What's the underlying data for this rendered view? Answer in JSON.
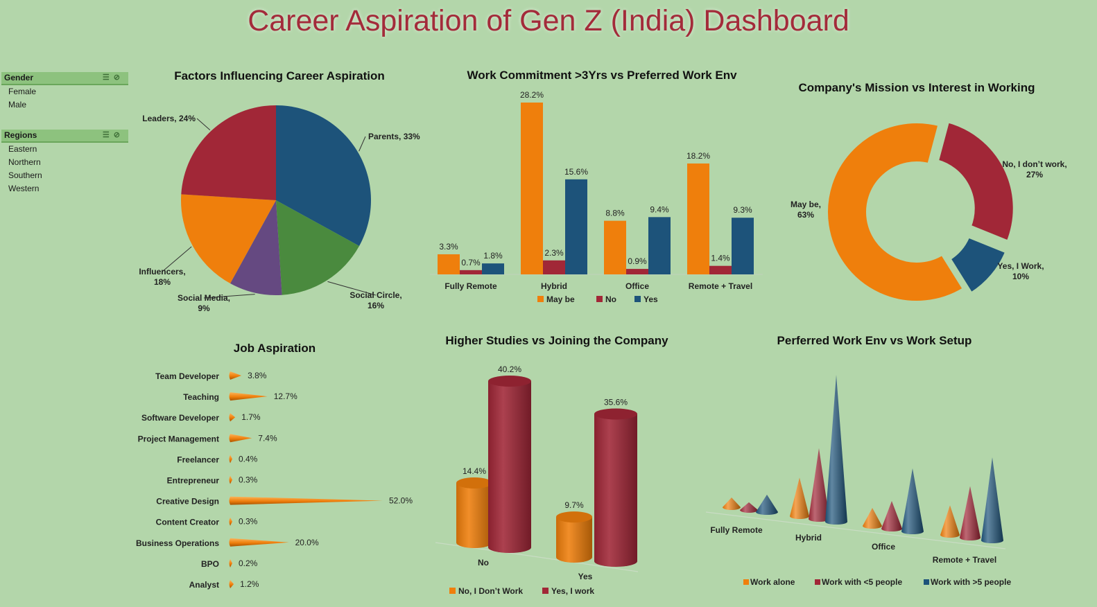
{
  "title": "Career Aspiration of Gen Z (India) Dashboard",
  "slicers": [
    {
      "header": "Gender",
      "items": [
        "Female",
        "Male"
      ]
    },
    {
      "header": "Regions",
      "items": [
        "Eastern",
        "Northern",
        "Southern",
        "Western"
      ]
    }
  ],
  "colors": {
    "orange": "#ef7f0c",
    "red": "#a12737",
    "blue": "#1d537a",
    "green": "#4a8a3e",
    "purple": "#654981"
  },
  "chart_data": [
    {
      "type": "pie",
      "title": "Factors Influencing Career Aspiration",
      "slices": [
        {
          "label": "Parents, 33%",
          "name": "Parents",
          "value": 33,
          "color": "#1d537a"
        },
        {
          "label": "Social Circle, 16%",
          "name": "Social Circle",
          "value": 16,
          "color": "#4a8a3e"
        },
        {
          "label": "Social Media, 9%",
          "name": "Social Media",
          "value": 9,
          "color": "#654981"
        },
        {
          "label": "Influencers, 18%",
          "name": "Influencers",
          "value": 18,
          "color": "#ef7f0c"
        },
        {
          "label": "Leaders, 24%",
          "name": "Leaders",
          "value": 24,
          "color": "#a12737"
        }
      ]
    },
    {
      "type": "bar",
      "title": "Work Commitment >3Yrs vs Preferred Work Env",
      "categories": [
        "Fully Remote",
        "Hybrid",
        "Office",
        "Remote + Travel"
      ],
      "series": [
        {
          "name": "May be",
          "values": [
            3.3,
            28.2,
            8.8,
            18.2
          ],
          "color": "#ef7f0c"
        },
        {
          "name": "No",
          "values": [
            0.7,
            2.3,
            0.9,
            1.4
          ],
          "color": "#a12737"
        },
        {
          "name": "Yes",
          "values": [
            1.8,
            15.6,
            9.4,
            9.3
          ],
          "color": "#1d537a"
        }
      ],
      "value_format": "%",
      "legend": "bottom"
    },
    {
      "type": "pie",
      "subtype": "donut",
      "title": "Company's Mission vs Interest in Working",
      "slices": [
        {
          "label": "No, I don't work, 27%",
          "name": "No, I don't work",
          "value": 27,
          "color": "#a12737"
        },
        {
          "label": "Yes, I Work, 10%",
          "name": "Yes, I Work",
          "value": 10,
          "color": "#1d537a"
        },
        {
          "label": "May be, 63%",
          "name": "May be",
          "value": 63,
          "color": "#ef7f0c"
        }
      ]
    },
    {
      "type": "bar",
      "subtype": "horizontal-cone",
      "title": "Job Aspiration",
      "categories": [
        "Team Developer",
        "Teaching",
        "Software Developer",
        "Project Management",
        "Freelancer",
        "Entrepreneur",
        "Creative Design",
        "Content Creator",
        "Business Operations",
        "BPO",
        "Analyst"
      ],
      "values": [
        3.8,
        12.7,
        1.7,
        7.4,
        0.4,
        0.3,
        52.0,
        0.3,
        20.0,
        0.2,
        1.2
      ],
      "labels": [
        "3.8%",
        "12.7%",
        "1.7%",
        "7.4%",
        "0.4%",
        "0.3%",
        "52.0%",
        "0.3%",
        "20.0%",
        "0.2%",
        "1.2%"
      ],
      "color": "#ef7f0c"
    },
    {
      "type": "bar",
      "subtype": "3d-cylinder",
      "title": "Higher Studies vs Joining the Company",
      "categories": [
        "No",
        "Yes"
      ],
      "series": [
        {
          "name": "No, I Don't Work",
          "values": [
            14.4,
            9.7
          ],
          "labels": [
            "14.4%",
            "9.7%"
          ],
          "color": "#ef7f0c"
        },
        {
          "name": "Yes, I work",
          "values": [
            40.2,
            35.6
          ],
          "labels": [
            "40.2%",
            "35.6%"
          ],
          "color": "#a12737"
        }
      ],
      "legend": "bottom"
    },
    {
      "type": "bar",
      "subtype": "3d-cone",
      "title": "Perferred Work Env vs Work Setup",
      "categories": [
        "Fully Remote",
        "Hybrid",
        "Office",
        "Remote + Travel"
      ],
      "series": [
        {
          "name": "Work alone",
          "values": [
            1.5,
            6.0,
            2.8,
            4.6
          ],
          "color": "#ef7f0c"
        },
        {
          "name": "Work with <5 people",
          "values": [
            1.2,
            11.0,
            4.3,
            8.0
          ],
          "color": "#a12737"
        },
        {
          "name": "Work with >5 people",
          "values": [
            2.7,
            22.8,
            9.8,
            12.9
          ],
          "color": "#1d537a"
        }
      ],
      "legend": "bottom"
    }
  ]
}
